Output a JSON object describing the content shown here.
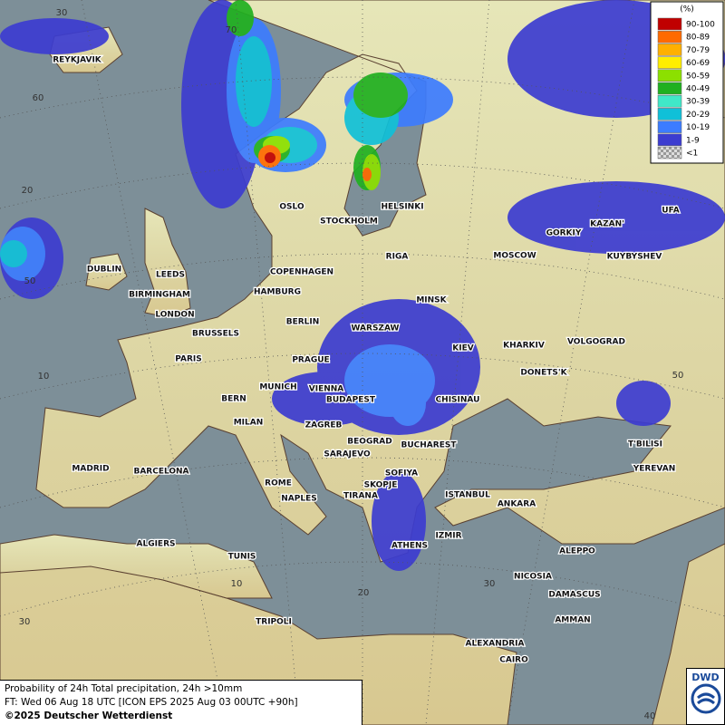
{
  "legend": {
    "title": "(%)",
    "items": [
      {
        "label": "90-100",
        "color": "#c00000"
      },
      {
        "label": "80-89",
        "color": "#ff6a00"
      },
      {
        "label": "70-79",
        "color": "#ffb000"
      },
      {
        "label": "60-69",
        "color": "#ffee00"
      },
      {
        "label": "50-59",
        "color": "#8ce000"
      },
      {
        "label": "40-49",
        "color": "#20b020"
      },
      {
        "label": "30-39",
        "color": "#40e8c8"
      },
      {
        "label": "20-29",
        "color": "#10c0d8"
      },
      {
        "label": "10-19",
        "color": "#3c7cff"
      },
      {
        "label": "1-9",
        "color": "#3c3cd0"
      },
      {
        "label": "<1",
        "color": "#b0b0b0"
      }
    ]
  },
  "cities": [
    "REYKJAVIK",
    "OSLO",
    "STOCKHOLM",
    "HELSINKI",
    "DUBLIN",
    "LEEDS",
    "BIRMINGHAM",
    "LONDON",
    "COPENHAGEN",
    "RIGA",
    "MOSCOW",
    "GORKIY",
    "KAZAN'",
    "UFA",
    "KUYBYSHEV",
    "HAMBURG",
    "BERLIN",
    "MINSK",
    "WARSZAW",
    "BRUSSELS",
    "KIEV",
    "KHARKIV",
    "VOLGOGRAD",
    "PARIS",
    "PRAGUE",
    "DONETS'K",
    "MUNICH",
    "VIENNA",
    "BERN",
    "BUDAPEST",
    "CHISINAU",
    "MILAN",
    "ZAGREB",
    "T'BILISI",
    "BEOGRAD",
    "BUCHAREST",
    "SARAJEVO",
    "MADRID",
    "BARCELONA",
    "SOFIYA",
    "YEREVAN",
    "ROME",
    "SKOPJE",
    "NAPLES",
    "TIRANA",
    "ISTANBUL",
    "ANKARA",
    "ALGIERS",
    "ATHENS",
    "IZMIR",
    "ALEPPO",
    "TUNIS",
    "NICOSIA",
    "DAMASCUS",
    "AMMAN",
    "TRIPOLI",
    "ALEXANDRIA",
    "CAIRO"
  ],
  "grid_labels": [
    "30",
    "70",
    "60",
    "20",
    "50",
    "10",
    "50",
    "10",
    "20",
    "30",
    "30",
    "40"
  ],
  "footer": {
    "line1": "Probability of 24h Total precipitation, 24h >10mm",
    "line2": "FT: Wed 06 Aug 18 UTC [ICON EPS 2025 Aug 03 00UTC +90h]",
    "line3": "©2025 Deutscher Wetterdienst"
  },
  "logo": "DWD"
}
